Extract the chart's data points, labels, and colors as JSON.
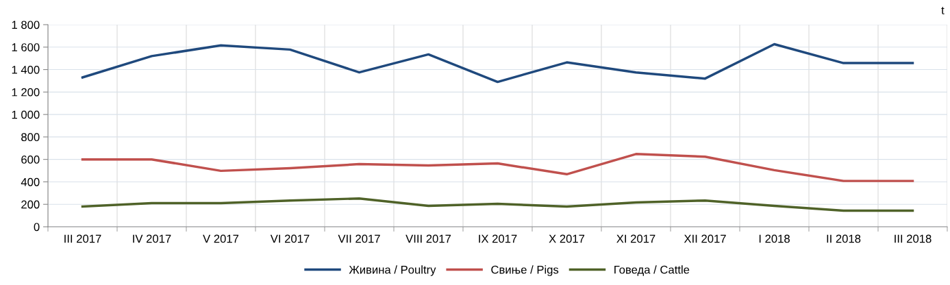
{
  "chart_data": {
    "type": "line",
    "ylabel": "t",
    "categories": [
      "III 2017",
      "IV 2017",
      "V 2017",
      "VI 2017",
      "VII 2017",
      "VIII 2017",
      "IX 2017",
      "X 2017",
      "XI 2017",
      "XII 2017",
      "I 2018",
      "II 2018",
      "III 2018"
    ],
    "series": [
      {
        "name": "Живина / Poultry",
        "color": "#1f497d",
        "values": [
          1330,
          1520,
          1615,
          1578,
          1375,
          1535,
          1290,
          1464,
          1374,
          1320,
          1626,
          1458,
          1458
        ]
      },
      {
        "name": "Свиње / Pigs",
        "color": "#c0504d",
        "values": [
          600,
          600,
          498,
          522,
          558,
          546,
          564,
          468,
          648,
          624,
          504,
          408,
          408
        ]
      },
      {
        "name": "Говеда / Cattle",
        "color": "#4f6228",
        "values": [
          180,
          210,
          210,
          234,
          252,
          186,
          204,
          180,
          216,
          234,
          186,
          144,
          144
        ]
      }
    ],
    "ylim": [
      0,
      1800
    ],
    "yticks": [
      0,
      200,
      400,
      600,
      800,
      {
        "value": 1000,
        "label": "1 000"
      },
      {
        "value": 1200,
        "label": "1 200"
      },
      {
        "value": 1400,
        "label": "1 400"
      },
      {
        "value": 1600,
        "label": "1 600"
      },
      {
        "value": 1800,
        "label": "1 800"
      }
    ],
    "grid": true,
    "legend": "bottom",
    "marker": "none",
    "line_style": "solid"
  }
}
